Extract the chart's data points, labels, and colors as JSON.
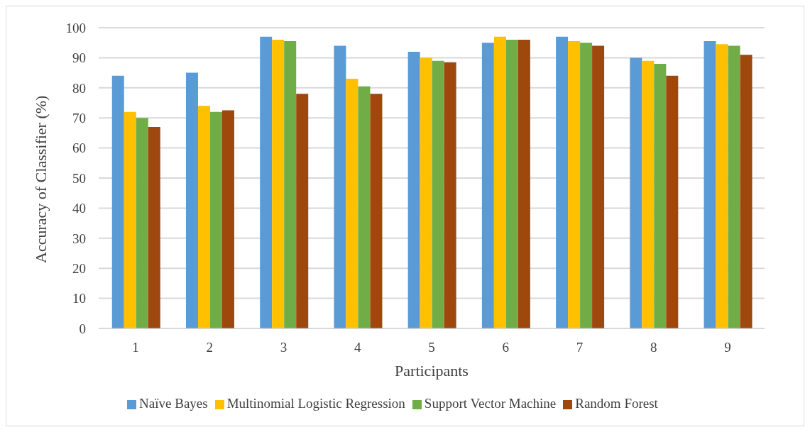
{
  "chart_data": {
    "type": "bar",
    "xlabel": "Participants",
    "ylabel": "Accuracy of Classifier (%)",
    "categories": [
      "1",
      "2",
      "3",
      "4",
      "5",
      "6",
      "7",
      "8",
      "9"
    ],
    "series": [
      {
        "name": "Naïve Bayes",
        "color": "#5b9bd5",
        "values": [
          84,
          85,
          97,
          94,
          92,
          95,
          97,
          90,
          95.5
        ]
      },
      {
        "name": "Multinomial Logistic Regression",
        "color": "#ffc000",
        "values": [
          72,
          74,
          96,
          83,
          90,
          97,
          95.5,
          89,
          94.5
        ]
      },
      {
        "name": "Support Vector Machine",
        "color": "#70ad47",
        "values": [
          70,
          72,
          95.5,
          80.5,
          89,
          96,
          95,
          88,
          94
        ]
      },
      {
        "name": "Random Forest",
        "color": "#9e480e",
        "values": [
          67,
          72.5,
          78,
          78,
          88.5,
          96,
          94,
          84,
          91
        ]
      }
    ],
    "ylim": [
      0,
      100
    ],
    "yticks": [
      0,
      10,
      20,
      30,
      40,
      50,
      60,
      70,
      80,
      90,
      100
    ],
    "grid": "y",
    "legend": "bottom"
  }
}
